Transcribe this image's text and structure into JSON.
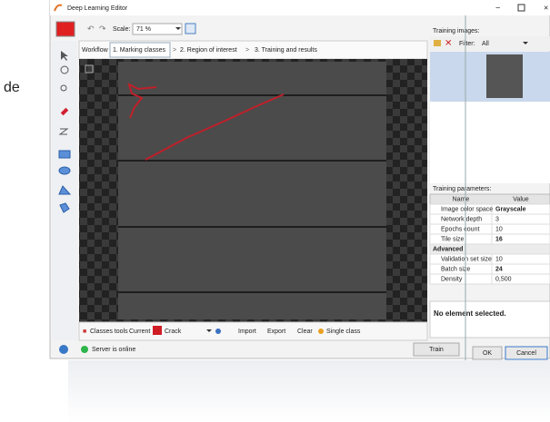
{
  "background_text": "de",
  "window": {
    "title": "Deep Learning Editor",
    "scale_label": "Scale:",
    "scale_value": "71 %"
  },
  "tabs": {
    "workflow": "Workflow",
    "items": [
      "1. Marking classes",
      "2. Region of interest",
      "3. Training and results"
    ]
  },
  "bottom_toolbar": {
    "classes_tools": "Classes tools",
    "current": "Current",
    "current_class": "Crack",
    "import": "Import",
    "export": "Export",
    "clear": "Clear",
    "mode": "Single class"
  },
  "status": {
    "text": "Server is online",
    "train_button": "Train"
  },
  "right_panel": {
    "training_images_label": "Training images:",
    "filter_label": "Filter:",
    "filter_value": "All",
    "parameters_label": "Training parameters:",
    "table": {
      "headers": [
        "Name",
        "Value"
      ],
      "rows": [
        [
          "Image color space",
          "Grayscale"
        ],
        [
          "Network depth",
          3
        ],
        [
          "Epochs count",
          10
        ],
        [
          "Tile size",
          16
        ]
      ],
      "section": "Advanced",
      "advanced_rows": [
        [
          "Validation set size",
          10
        ],
        [
          "Batch size",
          24
        ],
        [
          "Density",
          "0,500"
        ]
      ]
    },
    "selection_text": "No element selected."
  },
  "dialog": {
    "ok": "OK",
    "cancel": "Cancel"
  }
}
